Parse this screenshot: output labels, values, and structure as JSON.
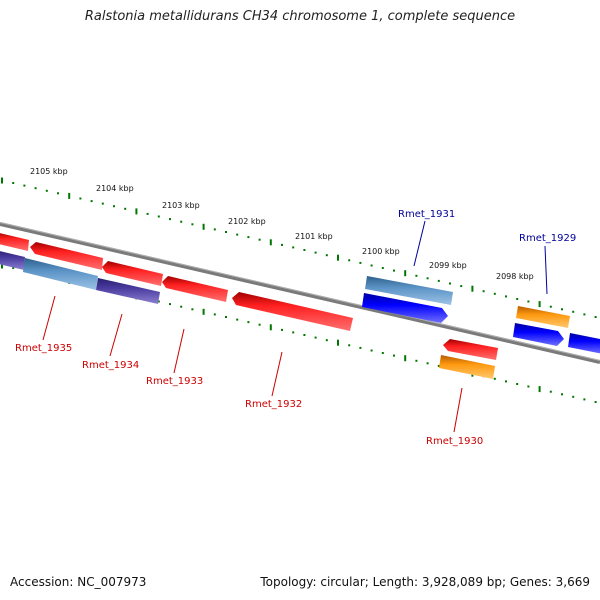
{
  "map": {
    "title": "Ralstonia metallidurans CH34 chromosome 1, complete sequence",
    "accession": "Accession: NC_007973",
    "summary": "Topology: circular; Length: 3,928,089 bp; Genes: 3,669"
  },
  "scale_labels": [
    "2105 kbp",
    "2104 kbp",
    "2103 kbp",
    "2102 kbp",
    "2101 kbp",
    "2100 kbp",
    "2099 kbp",
    "2098 kbp"
  ],
  "gene_labels": [
    "Rmet_1935",
    "Rmet_1934",
    "Rmet_1933",
    "Rmet_1932",
    "Rmet_1931",
    "Rmet_1930",
    "Rmet_1929"
  ],
  "colors": {
    "backbone": "#808080",
    "ticks": "#007700",
    "red": "#ff0000",
    "steelblue": "#4682b4",
    "blue": "#0000ff",
    "orange": "#ff8c00",
    "purple": "#4b3ca0",
    "label_red": "#cc0000",
    "label_blue": "#000099"
  }
}
